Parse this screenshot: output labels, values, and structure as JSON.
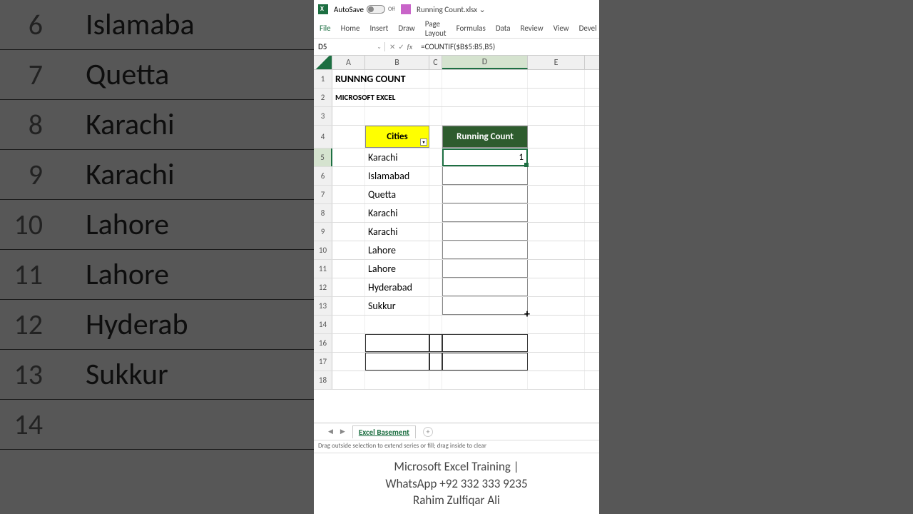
{
  "titlebar": {
    "autosave": "AutoSave",
    "autosave_state": "Off",
    "filename": "Running Count.xlsx ⌄"
  },
  "ribbon": [
    "File",
    "Home",
    "Insert",
    "Draw",
    "Page Layout",
    "Formulas",
    "Data",
    "Review",
    "View",
    "Devel"
  ],
  "namebox": "D5",
  "formula": "=COUNTIF($B$5:B5,B5)",
  "columns": [
    "A",
    "B",
    "C",
    "D",
    "E"
  ],
  "selected_col": "D",
  "selected_row": 5,
  "row1": {
    "A": "RUNNNG COUNT"
  },
  "row2": {
    "A": "MICROSOFT EXCEL"
  },
  "row4_B": "Cities",
  "row4_D": "Running Count",
  "data_rows": [
    {
      "n": 5,
      "city": "Karachi",
      "val": "1"
    },
    {
      "n": 6,
      "city": "Islamabad",
      "val": ""
    },
    {
      "n": 7,
      "city": "Quetta",
      "val": ""
    },
    {
      "n": 8,
      "city": "Karachi",
      "val": ""
    },
    {
      "n": 9,
      "city": "Karachi",
      "val": ""
    },
    {
      "n": 10,
      "city": "Lahore",
      "val": ""
    },
    {
      "n": 11,
      "city": "Lahore",
      "val": ""
    },
    {
      "n": 12,
      "city": "Hyderabad",
      "val": ""
    },
    {
      "n": 13,
      "city": "Sukkur",
      "val": ""
    }
  ],
  "extra_rows": [
    14,
    16,
    17,
    18
  ],
  "sheet_name": "Excel Basement",
  "status": "Drag outside selection to extend series or fill; drag inside to clear",
  "promo": {
    "line1": "Microsoft Excel Training |",
    "line2": "WhatsApp +92 332 333 9235",
    "line3": "Rahim Zulfiqar Ali"
  },
  "bg_left": [
    {
      "n": "6",
      "t": "Islamaba"
    },
    {
      "n": "7",
      "t": "Quetta"
    },
    {
      "n": "8",
      "t": "Karachi"
    },
    {
      "n": "9",
      "t": "Karachi"
    },
    {
      "n": "10",
      "t": "Lahore"
    },
    {
      "n": "11",
      "t": "Lahore"
    },
    {
      "n": "12",
      "t": "Hyderab"
    },
    {
      "n": "13",
      "t": "Sukkur"
    },
    {
      "n": "14",
      "t": ""
    }
  ]
}
